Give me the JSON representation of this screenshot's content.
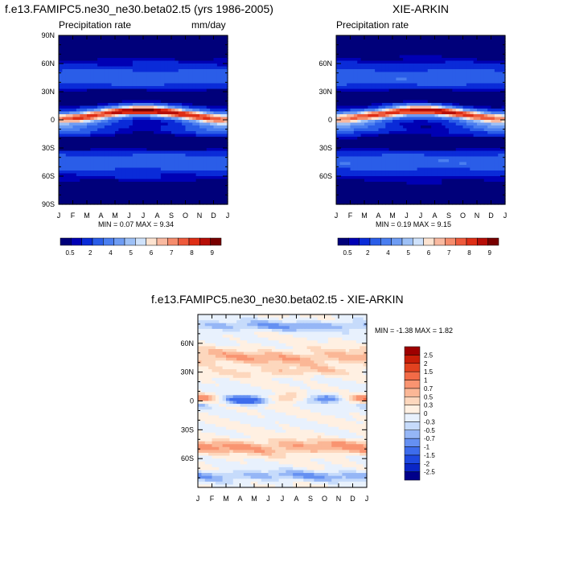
{
  "month_labels": [
    "J",
    "F",
    "M",
    "A",
    "M",
    "J",
    "J",
    "A",
    "S",
    "O",
    "N",
    "D",
    "J"
  ],
  "colorbar_abs": {
    "colors": [
      "#00007a",
      "#0000b4",
      "#0a2bd8",
      "#2a5de8",
      "#4a7ef0",
      "#6e9cf3",
      "#9dc0f6",
      "#cfe2fb",
      "#fde3d0",
      "#f9b9a0",
      "#f58c6c",
      "#ee5a3c",
      "#de2e16",
      "#b70e07",
      "#780000"
    ],
    "labels": [
      "0.5",
      "2",
      "4",
      "5",
      "6",
      "7",
      "8",
      "9"
    ]
  },
  "colorbar_diff": {
    "colors": [
      "#00008a",
      "#0a26c6",
      "#1e48e0",
      "#3d6cec",
      "#6590f2",
      "#95b6f6",
      "#c6dbfb",
      "#e8f1fd",
      "#fff0e2",
      "#fdd7bd",
      "#fbb796",
      "#f99471",
      "#f26b47",
      "#e2421f",
      "#c81e08",
      "#9e0000"
    ],
    "labels": [
      "-2.5",
      "-2",
      "-1.5",
      "-1",
      "-0.7",
      "-0.5",
      "-0.3",
      "0",
      "0.3",
      "0.5",
      "0.7",
      "1",
      "1.5",
      "2",
      "2.5"
    ]
  },
  "chart_data": [
    {
      "type": "heatmap",
      "title": "f.e13.FAMIPC5.ne30_ne30.beta02.t5 (yrs 1986-2005)",
      "subtitle_left": "Precipitation rate",
      "subtitle_right": "mm/day",
      "ylabel": "",
      "xlabel": "",
      "x": [
        "J",
        "F",
        "M",
        "A",
        "M",
        "J",
        "J",
        "A",
        "S",
        "O",
        "N",
        "D",
        "J"
      ],
      "yticks": [
        "90N",
        "60N",
        "30N",
        "0",
        "30S",
        "60S",
        "90S"
      ],
      "ylim": [
        -90,
        90
      ],
      "min_max_text": "MIN =   0.07 MAX =   9.34",
      "min": 0.07,
      "max": 9.34
    },
    {
      "type": "heatmap",
      "title": "XIE-ARKIN",
      "subtitle_left": "Precipitation rate",
      "x": [
        "J",
        "F",
        "M",
        "A",
        "M",
        "J",
        "J",
        "A",
        "S",
        "O",
        "N",
        "D",
        "J"
      ],
      "yticks": [
        "60N",
        "30N",
        "0",
        "30S",
        "60S"
      ],
      "ylim": [
        -90,
        90
      ],
      "min_max_text": "MIN =   0.19 MAX =   9.15",
      "min": 0.19,
      "max": 9.15
    },
    {
      "type": "heatmap",
      "title": "f.e13.FAMIPC5.ne30_ne30.beta02.t5 - XIE-ARKIN",
      "x": [
        "J",
        "F",
        "M",
        "A",
        "M",
        "J",
        "J",
        "A",
        "S",
        "O",
        "N",
        "D",
        "J"
      ],
      "yticks": [
        "60N",
        "30N",
        "0",
        "30S",
        "60S"
      ],
      "ylim": [
        -90,
        90
      ],
      "min_max_text": "MIN =  -1.38 MAX =   1.82",
      "min": -1.38,
      "max": 1.82
    }
  ]
}
